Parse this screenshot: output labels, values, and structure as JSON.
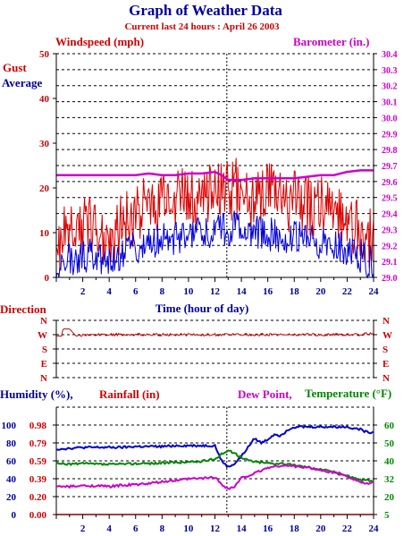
{
  "title": "Graph of Weather Data",
  "subtitle": "Current last 24 hours : April 26 2003",
  "colors": {
    "navy": "#000099",
    "red": "#cc0000",
    "magenta": "#cc00cc",
    "green": "#008800",
    "gray": "#888888"
  },
  "chart_data": [
    {
      "type": "line",
      "title": "",
      "legend": {
        "windspeed": "Windspeed (mph)",
        "barometer": "Barometer (in.)",
        "gust": "Gust",
        "average": "Average"
      },
      "xlabel": "Time (hour of day)",
      "xlim": [
        0,
        24
      ],
      "x_ticks": [
        "2",
        "4",
        "6",
        "8",
        "10",
        "12",
        "14",
        "16",
        "18",
        "20",
        "22",
        "24"
      ],
      "ylim_left": [
        0,
        50
      ],
      "y_ticks_left": [
        "0",
        "10",
        "20",
        "30",
        "40",
        "50"
      ],
      "ylim_right": [
        29.0,
        30.4
      ],
      "y_ticks_right": [
        "29.0",
        "29.1",
        "29.2",
        "29.3",
        "29.4",
        "29.5",
        "29.6",
        "29.7",
        "29.8",
        "29.9",
        "30.0",
        "30.1",
        "30.2",
        "30.3",
        "30.4"
      ],
      "current_time_marker": 12.9,
      "series": [
        {
          "name": "Gust",
          "axis": "left",
          "x": [
            0,
            0.5,
            1,
            1.5,
            2,
            2.5,
            3,
            3.5,
            4,
            4.5,
            5,
            5.5,
            6,
            6.5,
            7,
            7.5,
            8,
            8.5,
            9,
            9.5,
            10,
            10.5,
            11,
            11.5,
            12,
            12.5,
            13,
            13.5,
            14,
            14.5,
            15,
            15.5,
            16,
            16.5,
            17,
            17.5,
            18,
            18.5,
            19,
            19.5,
            20,
            20.5,
            21,
            21.5,
            22,
            22.5,
            23,
            23.5,
            24
          ],
          "values": [
            8,
            9,
            10,
            11,
            11,
            12,
            11,
            10,
            9,
            10,
            12,
            13,
            14,
            15,
            16,
            17,
            18,
            18,
            17,
            18,
            17,
            18,
            19,
            19,
            20,
            20,
            19,
            20,
            19,
            18,
            18,
            18,
            19,
            18,
            17,
            17,
            17,
            17,
            16,
            16,
            16,
            15,
            15,
            14,
            13,
            12,
            11,
            9,
            8
          ]
        },
        {
          "name": "Average",
          "axis": "left",
          "x": [
            0,
            0.5,
            1,
            1.5,
            2,
            2.5,
            3,
            3.5,
            4,
            4.5,
            5,
            5.5,
            6,
            6.5,
            7,
            7.5,
            8,
            8.5,
            9,
            9.5,
            10,
            10.5,
            11,
            11.5,
            12,
            12.5,
            13,
            13.5,
            14,
            14.5,
            15,
            15.5,
            16,
            16.5,
            17,
            17.5,
            18,
            18.5,
            19,
            19.5,
            20,
            20.5,
            21,
            21.5,
            22,
            22.5,
            23,
            23.5,
            24
          ],
          "values": [
            3,
            4,
            4,
            4,
            5,
            5,
            4,
            4,
            3,
            4,
            5,
            6,
            7,
            7,
            8,
            8,
            9,
            9,
            9,
            9,
            8,
            9,
            10,
            10,
            11,
            11,
            10,
            11,
            10,
            10,
            10,
            10,
            10,
            9,
            9,
            9,
            9,
            9,
            8,
            8,
            8,
            7,
            7,
            7,
            6,
            6,
            5,
            4,
            3
          ]
        },
        {
          "name": "Barometer",
          "axis": "right",
          "x": [
            0,
            1,
            2,
            3,
            4,
            5,
            6,
            7,
            8,
            9,
            10,
            11,
            12,
            12.5,
            13,
            14,
            15,
            16,
            17,
            18,
            19,
            20,
            21,
            22,
            23,
            24
          ],
          "values": [
            29.64,
            29.64,
            29.64,
            29.64,
            29.64,
            29.64,
            29.64,
            29.65,
            29.64,
            29.64,
            29.65,
            29.65,
            29.66,
            29.64,
            29.61,
            29.61,
            29.62,
            29.62,
            29.62,
            29.62,
            29.63,
            29.64,
            29.64,
            29.66,
            29.67,
            29.67
          ]
        }
      ]
    },
    {
      "type": "line",
      "title": "Direction",
      "xlim": [
        0,
        24
      ],
      "y_categories": [
        "N",
        "W",
        "S",
        "E",
        "N"
      ],
      "series": [
        {
          "name": "Wind direction",
          "x": [
            0,
            0.4,
            0.5,
            1,
            1.5,
            2,
            3,
            4,
            5,
            6,
            7,
            8,
            9,
            10,
            11,
            12,
            13,
            14,
            15,
            16,
            17,
            18,
            19,
            20,
            21,
            22,
            23,
            23.5,
            24
          ],
          "values": [
            1.1,
            1.1,
            0.6,
            0.6,
            1.1,
            1.05,
            1.0,
            1.0,
            1.0,
            1.0,
            1.0,
            1.0,
            1.0,
            1.0,
            1.0,
            1.0,
            1.0,
            1.0,
            1.0,
            1.0,
            1.0,
            1.0,
            1.0,
            1.0,
            1.0,
            1.0,
            1.0,
            0.9,
            1.0
          ]
        }
      ]
    },
    {
      "type": "line",
      "legend": {
        "humidity": "Humidity (%),",
        "rainfall": "Rainfall (in)",
        "dewpoint": "Dew Point,",
        "temperature": "Temperature (°F)"
      },
      "xlim": [
        0,
        24
      ],
      "x_ticks": [
        "2",
        "4",
        "6",
        "8",
        "10",
        "12",
        "14",
        "16",
        "18",
        "20",
        "22",
        "24"
      ],
      "humidity_ticks": [
        "0",
        "20",
        "40",
        "60",
        "80",
        "100"
      ],
      "rainfall_ticks": [
        "0.00",
        "0.20",
        "0.39",
        "0.59",
        "0.79",
        "0.98"
      ],
      "temperature_ticks": [
        "5",
        "20",
        "32",
        "40",
        "50",
        "60"
      ],
      "current_time_marker": 12.9,
      "series": [
        {
          "name": "Humidity",
          "axis": "humidity",
          "ylim": [
            0,
            120
          ],
          "x": [
            0,
            1,
            2,
            3,
            4,
            5,
            6,
            7,
            8,
            9,
            10,
            11,
            12,
            12.5,
            13,
            13.5,
            14,
            14.5,
            15,
            15.5,
            16,
            16.5,
            17,
            17.5,
            18,
            19,
            20,
            21,
            22,
            23,
            23.5,
            24
          ],
          "values": [
            73,
            74,
            75,
            75,
            75,
            75,
            76,
            76,
            76,
            77,
            77,
            77,
            77,
            60,
            53,
            57,
            65,
            75,
            85,
            80,
            84,
            90,
            88,
            95,
            98,
            98,
            98,
            98,
            98,
            95,
            92,
            92
          ]
        },
        {
          "name": "Temperature",
          "axis": "temperature",
          "ylim": [
            5,
            65
          ],
          "x": [
            0,
            1,
            2,
            3,
            4,
            5,
            6,
            7,
            8,
            9,
            10,
            11,
            12,
            12.5,
            13,
            13.5,
            14,
            14.5,
            15,
            16,
            17,
            18,
            19,
            20,
            21,
            22,
            23,
            24
          ],
          "values": [
            33.5,
            33.2,
            33.5,
            33.2,
            33,
            33.2,
            33.5,
            33.6,
            33.8,
            34,
            34.3,
            34.7,
            36,
            39,
            40.5,
            39.5,
            36.5,
            35.5,
            34.5,
            33.8,
            33.5,
            32.6,
            31.6,
            30.3,
            28.8,
            26.8,
            24.4,
            23.4
          ]
        },
        {
          "name": "Dew Point",
          "axis": "temperature",
          "ylim": [
            5,
            65
          ],
          "x": [
            0,
            1,
            2,
            3,
            4,
            5,
            6,
            7,
            8,
            9,
            10,
            11,
            12,
            12.5,
            13,
            13.5,
            14,
            15,
            16,
            17,
            18,
            19,
            20,
            21,
            22,
            23,
            23.5,
            24
          ],
          "values": [
            20.6,
            20.6,
            21,
            21.1,
            20.6,
            21.4,
            21.7,
            22.3,
            23.2,
            24,
            24.9,
            25.2,
            25.9,
            22,
            19.4,
            20.6,
            25.4,
            28,
            31.2,
            32.4,
            32,
            31.2,
            29.7,
            28.5,
            26.5,
            23.2,
            22.1,
            22.7
          ]
        }
      ]
    }
  ]
}
